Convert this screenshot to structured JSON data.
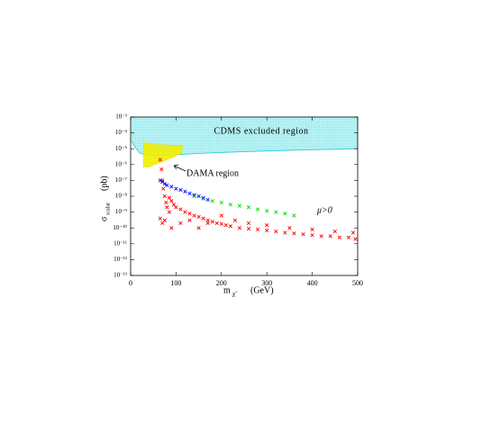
{
  "chart_data": {
    "type": "scatter",
    "y_log": true,
    "xlim": [
      0,
      500
    ],
    "ylim": [
      1e-13,
      0.001
    ],
    "xticks": [
      0,
      100,
      200,
      300,
      400,
      500
    ],
    "yticks": [
      {
        "value": 0.001,
        "label": "10⁻³"
      },
      {
        "value": 0.0001,
        "label": "10⁻⁴"
      },
      {
        "value": 1e-05,
        "label": "10⁻⁵"
      },
      {
        "value": 1e-06,
        "label": "10⁻⁶"
      },
      {
        "value": 1e-07,
        "label": "10⁻⁷"
      },
      {
        "value": 1e-08,
        "label": "10⁻⁸"
      },
      {
        "value": 1e-09,
        "label": "10⁻⁹"
      },
      {
        "value": 1e-10,
        "label": "10⁻¹⁰"
      },
      {
        "value": 1e-11,
        "label": "10⁻¹¹"
      },
      {
        "value": 1e-12,
        "label": "10⁻¹²"
      },
      {
        "value": 1e-13,
        "label": "10⁻¹³"
      }
    ],
    "x_label": "m",
    "x_label_sub": "χ̃",
    "x_label_unit": "(GeV)",
    "y_label": "σ",
    "y_label_sub": "scalar",
    "y_label_unit": "(pb)",
    "annotations": [
      "CDMS excluded region",
      "DAMA region",
      "μ>0"
    ],
    "regions": [
      {
        "color": "#aeeef0",
        "edge": "#22c8d0",
        "x": [
          2,
          10,
          20,
          35,
          60,
          100,
          150,
          200,
          300,
          400,
          500
        ],
        "y": [
          3e-05,
          1.2e-05,
          5.5e-06,
          3.8e-06,
          3.6e-06,
          4.2e-06,
          5e-06,
          5.8e-06,
          7.2e-06,
          8.6e-06,
          1e-05
        ]
      },
      {
        "color": "#f0f000",
        "edge": "#e8d800",
        "x": [
          28,
          60,
          115,
          112,
          80,
          60,
          40,
          28
        ],
        "y": [
          2.5e-05,
          1.8e-05,
          1.6e-05,
          5e-06,
          2e-06,
          1.2e-06,
          7e-07,
          7e-07
        ]
      }
    ],
    "series": [
      {
        "color": "#ff0000",
        "x": [
          65,
          68,
          70,
          72,
          75,
          78,
          80,
          85,
          90,
          95,
          100,
          110,
          120,
          130,
          140,
          150,
          160,
          170,
          180,
          190,
          200,
          210,
          220,
          240,
          260,
          280,
          300,
          320,
          340,
          360,
          380,
          400,
          420,
          440,
          460,
          480,
          495,
          70,
          90,
          110,
          130,
          150,
          170,
          200,
          230,
          260,
          300,
          350,
          400,
          450,
          490,
          65,
          75,
          85
        ],
        "values": [
          2e-06,
          5e-07,
          1e-07,
          3e-08,
          1e-08,
          4e-09,
          2e-09,
          8e-09,
          5e-09,
          3e-09,
          2e-09,
          1.5e-09,
          1e-09,
          8e-10,
          6e-10,
          5e-10,
          4e-10,
          3e-10,
          2.5e-10,
          2e-10,
          1.8e-10,
          1.5e-10,
          1.3e-10,
          1e-10,
          9e-11,
          8e-11,
          7e-11,
          6e-11,
          5e-11,
          4.5e-11,
          4e-11,
          3.5e-11,
          3e-11,
          3e-11,
          2.5e-11,
          2.5e-11,
          2e-11,
          2e-10,
          1e-10,
          2e-10,
          3e-10,
          1e-10,
          2e-10,
          6e-10,
          3e-10,
          2e-10,
          1.5e-10,
          1e-10,
          8e-11,
          6e-11,
          5e-11,
          4e-10,
          3e-10,
          1e-09
        ]
      },
      {
        "color": "#0000ff",
        "x": [
          65,
          70,
          75,
          80,
          90,
          100,
          110,
          120,
          130,
          140,
          150,
          160,
          170
        ],
        "values": [
          1e-07,
          8e-08,
          6e-08,
          5e-08,
          4e-08,
          3e-08,
          2.5e-08,
          2e-08,
          1.5e-08,
          1.2e-08,
          1e-08,
          8e-09,
          6e-09
        ]
      },
      {
        "color": "#00dd00",
        "x": [
          140,
          160,
          180,
          200,
          220,
          240,
          260,
          280,
          300,
          320,
          340,
          360
        ],
        "values": [
          1e-08,
          7e-09,
          5e-09,
          4e-09,
          3e-09,
          2.5e-09,
          2e-09,
          1.5e-09,
          1.2e-09,
          1e-09,
          8e-10,
          6e-10
        ]
      }
    ]
  }
}
